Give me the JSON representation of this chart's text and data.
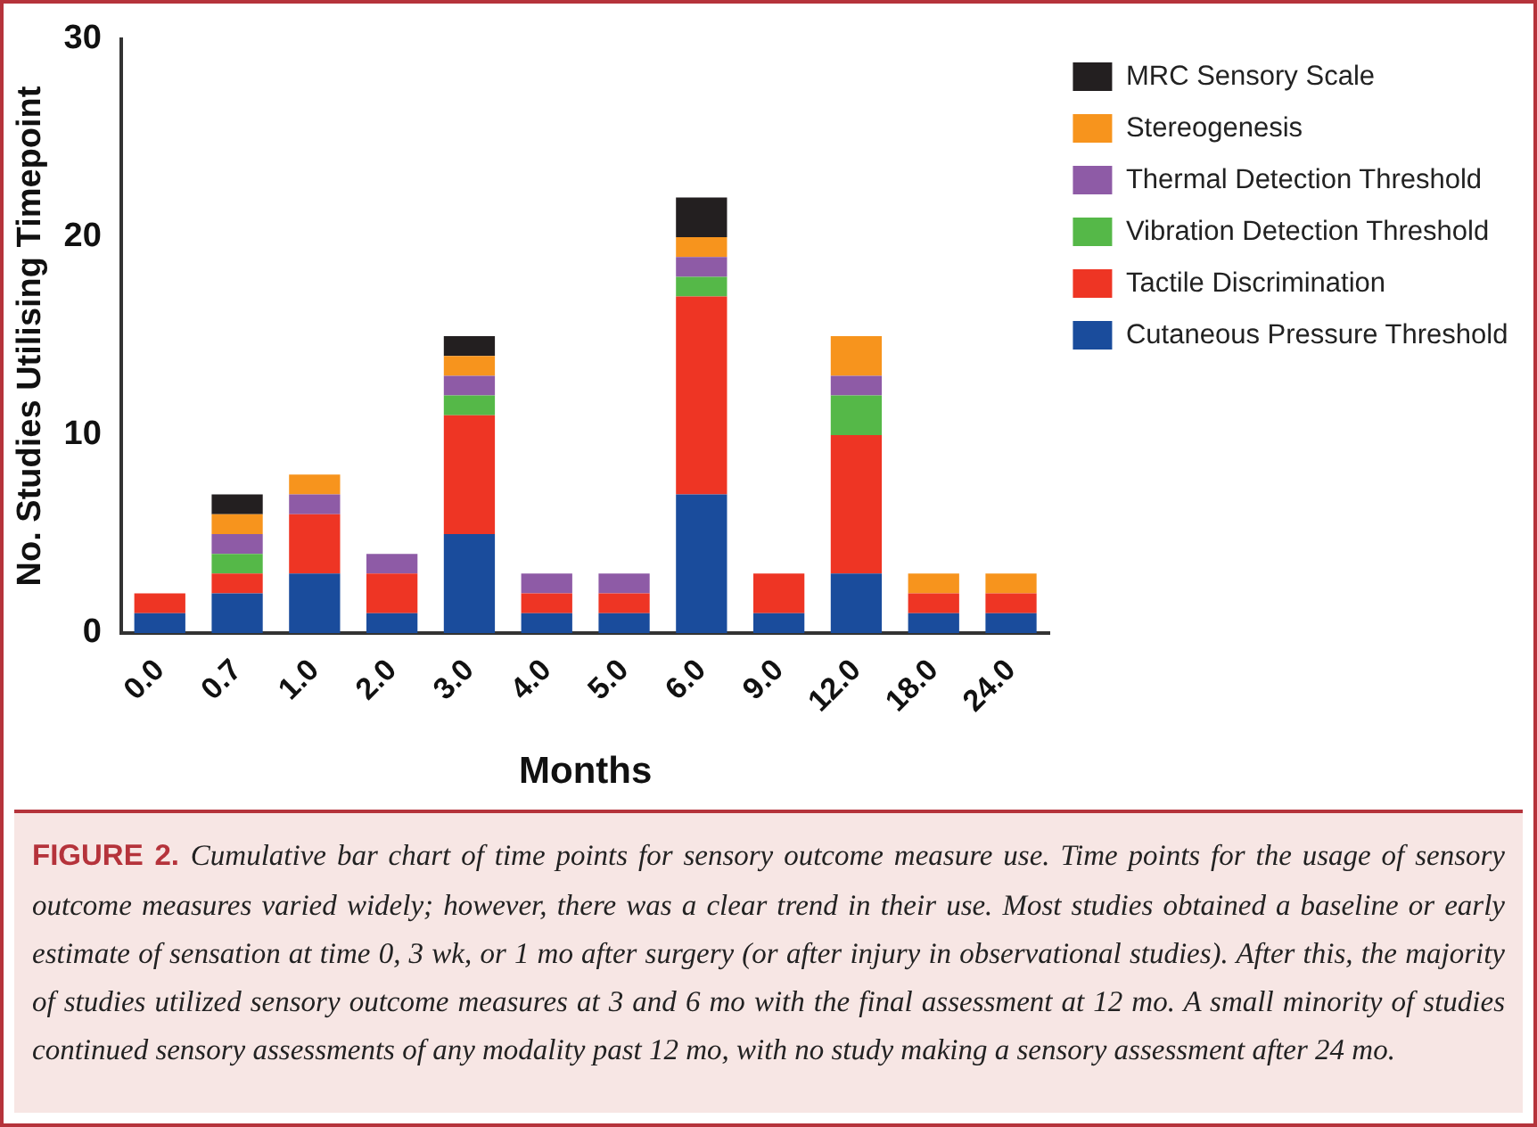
{
  "chart_data": {
    "type": "bar",
    "stacked": true,
    "xlabel": "Months",
    "ylabel": "No. Studies Utilising Timepoint",
    "categories": [
      "0.0",
      "0.7",
      "1.0",
      "2.0",
      "3.0",
      "4.0",
      "5.0",
      "6.0",
      "9.0",
      "12.0",
      "18.0",
      "24.0"
    ],
    "ylim": [
      0,
      30
    ],
    "yticks": [
      0,
      10,
      20,
      30
    ],
    "grid": false,
    "legend": "right",
    "series": [
      {
        "name": "Cutaneous Pressure Threshold",
        "color": "#1a4c9c",
        "values": [
          1,
          2,
          3,
          1,
          5,
          1,
          1,
          7,
          1,
          3,
          1,
          1
        ]
      },
      {
        "name": "Tactile Discrimination",
        "color": "#ee3524",
        "values": [
          1,
          1,
          3,
          2,
          6,
          1,
          1,
          10,
          2,
          7,
          1,
          1
        ]
      },
      {
        "name": "Vibration Detection Threshold",
        "color": "#55b848",
        "values": [
          0,
          1,
          0,
          0,
          1,
          0,
          0,
          1,
          0,
          2,
          0,
          0
        ]
      },
      {
        "name": "Thermal Detection Threshold",
        "color": "#8e5ba6",
        "values": [
          0,
          1,
          1,
          1,
          1,
          1,
          1,
          1,
          0,
          1,
          0,
          0
        ]
      },
      {
        "name": "Stereogenesis",
        "color": "#f7941d",
        "values": [
          0,
          1,
          1,
          0,
          1,
          0,
          0,
          1,
          0,
          2,
          1,
          1
        ]
      },
      {
        "name": "MRC Sensory Scale",
        "color": "#231f20",
        "values": [
          0,
          1,
          0,
          0,
          1,
          0,
          0,
          2,
          0,
          0,
          0,
          0
        ]
      }
    ],
    "annotations": [
      "FIGURE 2.",
      "Cumulative bar chart of time points for sensory outcome measure use. Time points for the usage of sensory outcome measures varied widely; however, there was a clear trend in their use. Most studies obtained a baseline or early estimate of sensation at time 0, 3 wk, or 1 mo after surgery (or after injury in observational studies). After this, the majority of studies utilized sensory outcome measures at 3 and 6 mo with the final assessment at 12 mo. A small minority of studies continued sensory assessments of any modality past 12 mo, with no study making a sensory assessment after 24 mo."
    ]
  }
}
